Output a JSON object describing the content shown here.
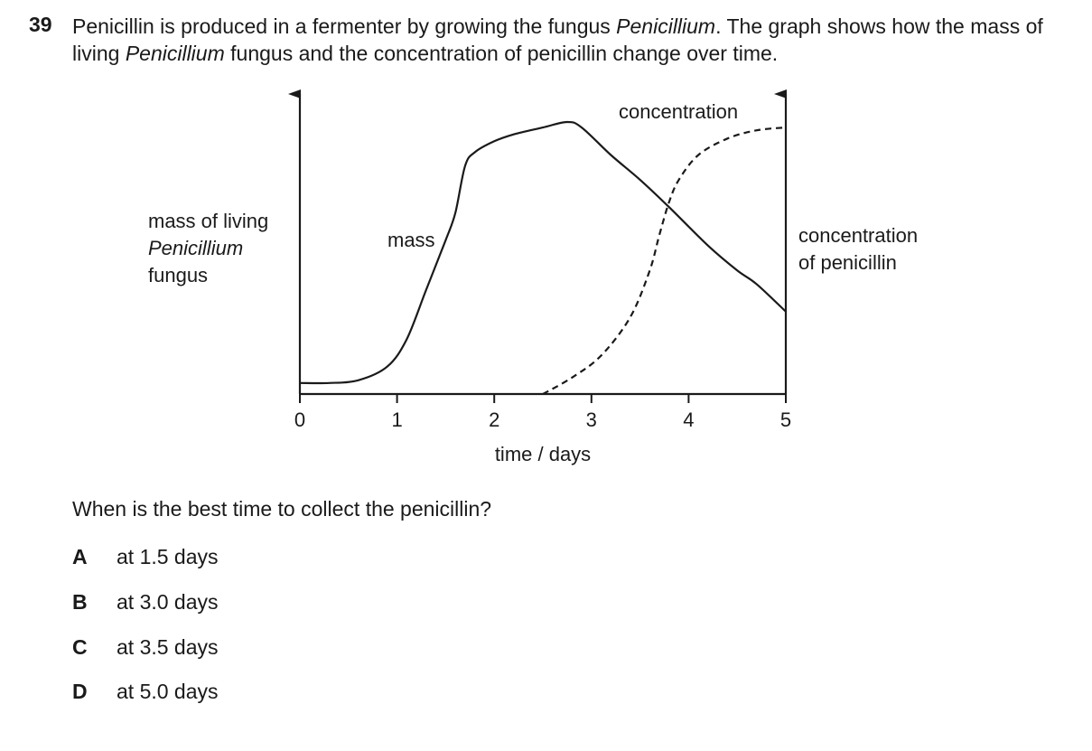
{
  "question": {
    "number": "39",
    "text_part1": "Penicillin is produced in a fermenter by growing the fungus ",
    "text_italic1": "Penicillium",
    "text_part2": ". The graph shows how the mass of living ",
    "text_italic2": "Penicillium",
    "text_part3": " fungus and the concentration of penicillin change over time."
  },
  "chart_data": {
    "type": "line",
    "xlabel": "time / days",
    "x_ticks": [
      "0",
      "1",
      "2",
      "3",
      "4",
      "5"
    ],
    "xlim": [
      0,
      5
    ],
    "ylim": [
      0,
      1
    ],
    "left_axis_label": {
      "line1": "mass of living",
      "line2": "Penicillium",
      "line3": "fungus"
    },
    "right_axis_label": {
      "line1": "concentration",
      "line2": "of penicillin"
    },
    "axis_numbers_shown": false,
    "series": [
      {
        "name": "mass",
        "style": "solid",
        "x": [
          0,
          0.3,
          0.6,
          0.9,
          1.1,
          1.3,
          1.5,
          1.6,
          1.7,
          1.8,
          2.0,
          2.2,
          2.5,
          2.75,
          2.9,
          3.2,
          3.5,
          3.8,
          4.2,
          4.5,
          4.7,
          5.0
        ],
        "y": [
          0.04,
          0.04,
          0.05,
          0.1,
          0.2,
          0.38,
          0.56,
          0.66,
          0.83,
          0.88,
          0.92,
          0.945,
          0.97,
          0.99,
          0.97,
          0.87,
          0.78,
          0.68,
          0.54,
          0.45,
          0.4,
          0.3
        ]
      },
      {
        "name": "concentration",
        "style": "dashed",
        "x": [
          2.5,
          2.8,
          3.1,
          3.4,
          3.6,
          3.7,
          3.8,
          3.9,
          4.1,
          4.4,
          4.7,
          5.0
        ],
        "y": [
          0.0,
          0.06,
          0.14,
          0.28,
          0.45,
          0.58,
          0.7,
          0.78,
          0.87,
          0.93,
          0.96,
          0.97
        ]
      }
    ]
  },
  "prompt": "When is the best time to collect the penicillin?",
  "options": [
    {
      "letter": "A",
      "text": "at 1.5 days"
    },
    {
      "letter": "B",
      "text": "at 3.0 days"
    },
    {
      "letter": "C",
      "text": "at 3.5 days"
    },
    {
      "letter": "D",
      "text": "at 5.0 days"
    }
  ]
}
